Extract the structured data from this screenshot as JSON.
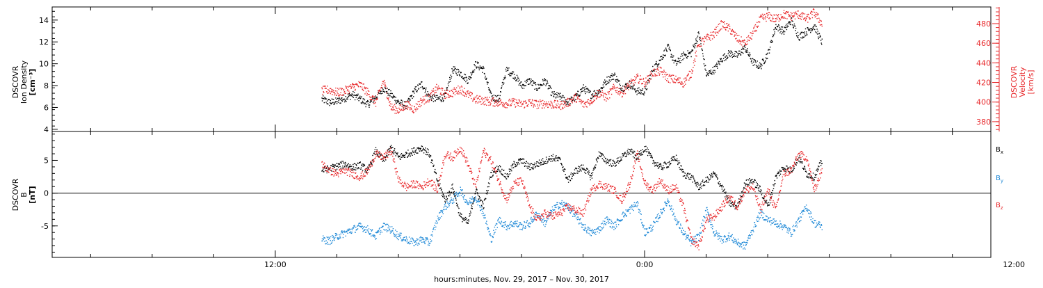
{
  "xaxis": {
    "label": "hours:minutes, Nov. 29, 2017 – Nov. 30, 2017",
    "range_hours": [
      -14.5,
      46.5
    ],
    "ticks": [
      {
        "hour": 0,
        "label": "12:00"
      },
      {
        "hour": 24,
        "label": "0:00"
      },
      {
        "hour": 48,
        "label": "12:00"
      }
    ],
    "minor_tick_step_hours": 4
  },
  "chart_data": [
    {
      "type": "scatter",
      "panel": "top",
      "ylabel_left": [
        "DSCOVR",
        "Ion Density",
        "[cm⁻³]"
      ],
      "ylabel_right": [
        "DSCOVR",
        "Velocity",
        "[km/s]"
      ],
      "left_axis": {
        "ylim": [
          3.8,
          15.2
        ],
        "ticks": [
          4,
          6,
          8,
          10,
          12,
          14
        ],
        "color": "#000000"
      },
      "right_axis": {
        "ylim": [
          370,
          497
        ],
        "ticks": [
          380,
          400,
          420,
          440,
          460,
          480
        ],
        "color": "#e8282b"
      },
      "series": [
        {
          "key": "density",
          "axis": "left",
          "color": "#000000",
          "x_hours": [
            3.0,
            3.5,
            4.0,
            4.5,
            5.0,
            5.5,
            6.0,
            6.5,
            7.0,
            7.5,
            8.0,
            8.5,
            9.0,
            9.5,
            10.0,
            10.5,
            11.0,
            11.5,
            12.0,
            12.5,
            13.0,
            13.5,
            14.0,
            14.5,
            15.0,
            15.5,
            16.0,
            16.5,
            17.0,
            17.5,
            18.0,
            18.5,
            19.0,
            19.5,
            20.0,
            20.5,
            21.0,
            21.5,
            22.0,
            22.5,
            23.0,
            23.5,
            24.0,
            24.5,
            25.0,
            25.5,
            26.0,
            26.5,
            27.0,
            27.5,
            28.0,
            28.5,
            29.0,
            29.5,
            30.0,
            30.5,
            31.0,
            31.5,
            32.0,
            32.5,
            33.0,
            33.5,
            34.0,
            34.5,
            35.0,
            35.5
          ],
          "values": [
            6.8,
            6.5,
            6.6,
            6.9,
            7.2,
            6.8,
            6.3,
            7.0,
            7.8,
            7.2,
            6.5,
            6.2,
            7.5,
            8.2,
            7.0,
            6.8,
            7.0,
            9.5,
            9.2,
            8.5,
            10.0,
            9.5,
            7.0,
            6.8,
            9.5,
            9.0,
            8.0,
            8.5,
            7.8,
            8.5,
            7.2,
            7.0,
            6.5,
            7.0,
            7.8,
            7.2,
            7.5,
            8.5,
            9.0,
            7.8,
            8.2,
            7.5,
            7.5,
            9.5,
            10.5,
            11.5,
            10.0,
            10.8,
            11.0,
            12.8,
            9.0,
            9.5,
            10.5,
            11.0,
            10.8,
            11.5,
            10.2,
            9.8,
            11.0,
            13.5,
            13.0,
            14.0,
            12.5,
            13.0,
            13.5,
            12.0
          ],
          "noise": 0.35
        },
        {
          "key": "velocity",
          "axis": "right",
          "color": "#e8282b",
          "x_hours": [
            3.0,
            3.5,
            4.0,
            4.5,
            5.0,
            5.5,
            6.0,
            6.5,
            7.0,
            7.5,
            8.0,
            8.5,
            9.0,
            9.5,
            10.0,
            10.5,
            11.0,
            11.5,
            12.0,
            12.5,
            13.0,
            13.5,
            14.0,
            14.5,
            15.0,
            15.5,
            16.0,
            16.5,
            17.0,
            17.5,
            18.0,
            18.5,
            19.0,
            19.5,
            20.0,
            20.5,
            21.0,
            21.5,
            22.0,
            22.5,
            23.0,
            23.5,
            24.0,
            24.5,
            25.0,
            25.5,
            26.0,
            26.5,
            27.0,
            27.5,
            28.0,
            28.5,
            29.0,
            29.5,
            30.0,
            30.5,
            31.0,
            31.5,
            32.0,
            32.5,
            33.0,
            33.5,
            34.0,
            34.5,
            35.0,
            35.5
          ],
          "values": [
            412,
            413,
            410,
            412,
            416,
            418,
            410,
            400,
            422,
            395,
            392,
            398,
            393,
            402,
            405,
            415,
            408,
            410,
            414,
            408,
            403,
            402,
            401,
            400,
            399,
            400,
            398,
            400,
            398,
            399,
            398,
            397,
            400,
            405,
            398,
            402,
            410,
            405,
            415,
            410,
            418,
            425,
            420,
            430,
            432,
            425,
            423,
            420,
            430,
            460,
            465,
            470,
            480,
            475,
            465,
            460,
            470,
            485,
            488,
            485,
            490,
            488,
            490,
            485,
            492,
            480
          ],
          "noise": 4.5
        }
      ]
    },
    {
      "type": "scatter",
      "panel": "bottom",
      "ylabel_left": [
        "DSCOVR",
        "B",
        "[nT]"
      ],
      "ylim": [
        -9.8,
        9.4
      ],
      "ticks": [
        -5,
        0,
        5
      ],
      "zero_line": true,
      "legend": {
        "placement": "right",
        "entries": [
          {
            "label": "B",
            "sub": "x",
            "color": "#000000"
          },
          {
            "label": "B",
            "sub": "y",
            "color": "#1b87d6"
          },
          {
            "label": "B",
            "sub": "z",
            "color": "#e8282b"
          }
        ]
      },
      "series": [
        {
          "key": "bx",
          "color": "#000000",
          "x_hours": [
            3.0,
            3.5,
            4.0,
            4.5,
            5.0,
            5.5,
            6.0,
            6.5,
            7.0,
            7.5,
            8.0,
            8.5,
            9.0,
            9.5,
            10.0,
            10.5,
            11.0,
            11.5,
            12.0,
            12.5,
            13.0,
            13.5,
            14.0,
            14.5,
            15.0,
            15.5,
            16.0,
            16.5,
            17.0,
            17.5,
            18.0,
            18.5,
            19.0,
            19.5,
            20.0,
            20.5,
            21.0,
            21.5,
            22.0,
            22.5,
            23.0,
            23.5,
            24.0,
            24.5,
            25.0,
            25.5,
            26.0,
            26.5,
            27.0,
            27.5,
            28.0,
            28.5,
            29.0,
            29.5,
            30.0,
            30.5,
            31.0,
            31.5,
            32.0,
            32.5,
            33.0,
            33.5,
            34.0,
            34.5,
            35.0,
            35.5
          ],
          "values": [
            3.5,
            3.8,
            4.2,
            4.5,
            4.0,
            4.3,
            3.5,
            6.5,
            5.0,
            7.0,
            5.5,
            6.0,
            6.5,
            7.0,
            6.0,
            2.0,
            -1.0,
            1.0,
            -3.5,
            -4.5,
            0.5,
            -2.0,
            3.0,
            4.0,
            2.5,
            4.5,
            5.0,
            4.0,
            4.5,
            5.0,
            5.5,
            5.0,
            2.0,
            3.5,
            4.0,
            2.5,
            6.0,
            5.0,
            4.5,
            5.5,
            6.5,
            5.5,
            7.0,
            5.0,
            4.0,
            4.5,
            5.5,
            3.0,
            2.5,
            1.0,
            2.0,
            3.0,
            1.0,
            -1.5,
            -2.0,
            1.5,
            2.0,
            0.5,
            -2.0,
            2.5,
            4.0,
            3.5,
            5.5,
            3.0,
            2.5,
            5.0
          ],
          "noise": 0.55
        },
        {
          "key": "by",
          "color": "#1b87d6",
          "x_hours": [
            3.0,
            3.5,
            4.0,
            4.5,
            5.0,
            5.5,
            6.0,
            6.5,
            7.0,
            7.5,
            8.0,
            8.5,
            9.0,
            9.5,
            10.0,
            10.5,
            11.0,
            11.5,
            12.0,
            12.5,
            13.0,
            13.5,
            14.0,
            14.5,
            15.0,
            15.5,
            16.0,
            16.5,
            17.0,
            17.5,
            18.0,
            18.5,
            19.0,
            19.5,
            20.0,
            20.5,
            21.0,
            21.5,
            22.0,
            22.5,
            23.0,
            23.5,
            24.0,
            24.5,
            25.0,
            25.5,
            26.0,
            26.5,
            27.0,
            27.5,
            28.0,
            28.5,
            29.0,
            29.5,
            30.0,
            30.5,
            31.0,
            31.5,
            32.0,
            32.5,
            33.0,
            33.5,
            34.0,
            34.5,
            35.0,
            35.5
          ],
          "values": [
            -7.0,
            -7.2,
            -6.5,
            -6.0,
            -5.5,
            -5.0,
            -5.5,
            -6.5,
            -5.0,
            -5.5,
            -6.5,
            -7.0,
            -7.5,
            -7.0,
            -7.5,
            -4.0,
            -2.0,
            -1.0,
            0.5,
            -1.5,
            -0.5,
            -3.0,
            -7.0,
            -4.0,
            -5.0,
            -4.5,
            -5.0,
            -4.5,
            -3.0,
            -4.5,
            -2.5,
            -1.5,
            -2.0,
            -3.5,
            -5.0,
            -6.0,
            -5.5,
            -4.0,
            -5.0,
            -3.5,
            -2.5,
            -1.5,
            -6.0,
            -5.0,
            -3.0,
            -1.0,
            -4.0,
            -6.0,
            -7.5,
            -6.5,
            -2.5,
            -6.0,
            -7.0,
            -6.5,
            -7.5,
            -8.0,
            -5.5,
            -3.0,
            -4.0,
            -4.5,
            -5.0,
            -6.0,
            -4.0,
            -2.0,
            -4.5,
            -5.0
          ],
          "noise": 0.6
        },
        {
          "key": "bz",
          "color": "#e8282b",
          "x_hours": [
            3.0,
            3.5,
            4.0,
            4.5,
            5.0,
            5.5,
            6.0,
            6.5,
            7.0,
            7.5,
            8.0,
            8.5,
            9.0,
            9.5,
            10.0,
            10.5,
            11.0,
            11.5,
            12.0,
            12.5,
            13.0,
            13.5,
            14.0,
            14.5,
            15.0,
            15.5,
            16.0,
            16.5,
            17.0,
            17.5,
            18.0,
            18.5,
            19.0,
            19.5,
            20.0,
            20.5,
            21.0,
            21.5,
            22.0,
            22.5,
            23.0,
            23.5,
            24.0,
            24.5,
            25.0,
            25.5,
            26.0,
            26.5,
            27.0,
            27.5,
            28.0,
            28.5,
            29.0,
            29.5,
            30.0,
            30.5,
            31.0,
            31.5,
            32.0,
            32.5,
            33.0,
            33.5,
            34.0,
            34.5,
            35.0,
            35.5
          ],
          "values": [
            4.5,
            3.5,
            3.0,
            3.5,
            3.0,
            2.5,
            3.5,
            6.0,
            5.5,
            6.5,
            2.0,
            1.0,
            1.5,
            1.0,
            2.0,
            0.5,
            6.0,
            5.5,
            7.0,
            4.5,
            1.0,
            6.5,
            5.0,
            2.0,
            -1.0,
            1.5,
            2.0,
            -2.0,
            -4.0,
            -3.0,
            -3.5,
            -3.0,
            -2.0,
            -2.5,
            -3.0,
            0.5,
            1.5,
            1.0,
            0.5,
            -1.0,
            1.5,
            6.0,
            1.5,
            0.5,
            2.0,
            0.5,
            1.0,
            -2.0,
            -7.0,
            -8.0,
            -4.0,
            -3.5,
            -2.0,
            -0.5,
            -2.0,
            0.5,
            1.0,
            -2.5,
            0.5,
            -2.5,
            3.0,
            3.5,
            6.0,
            5.5,
            0.5,
            3.5
          ],
          "noise": 0.6
        }
      ]
    }
  ]
}
